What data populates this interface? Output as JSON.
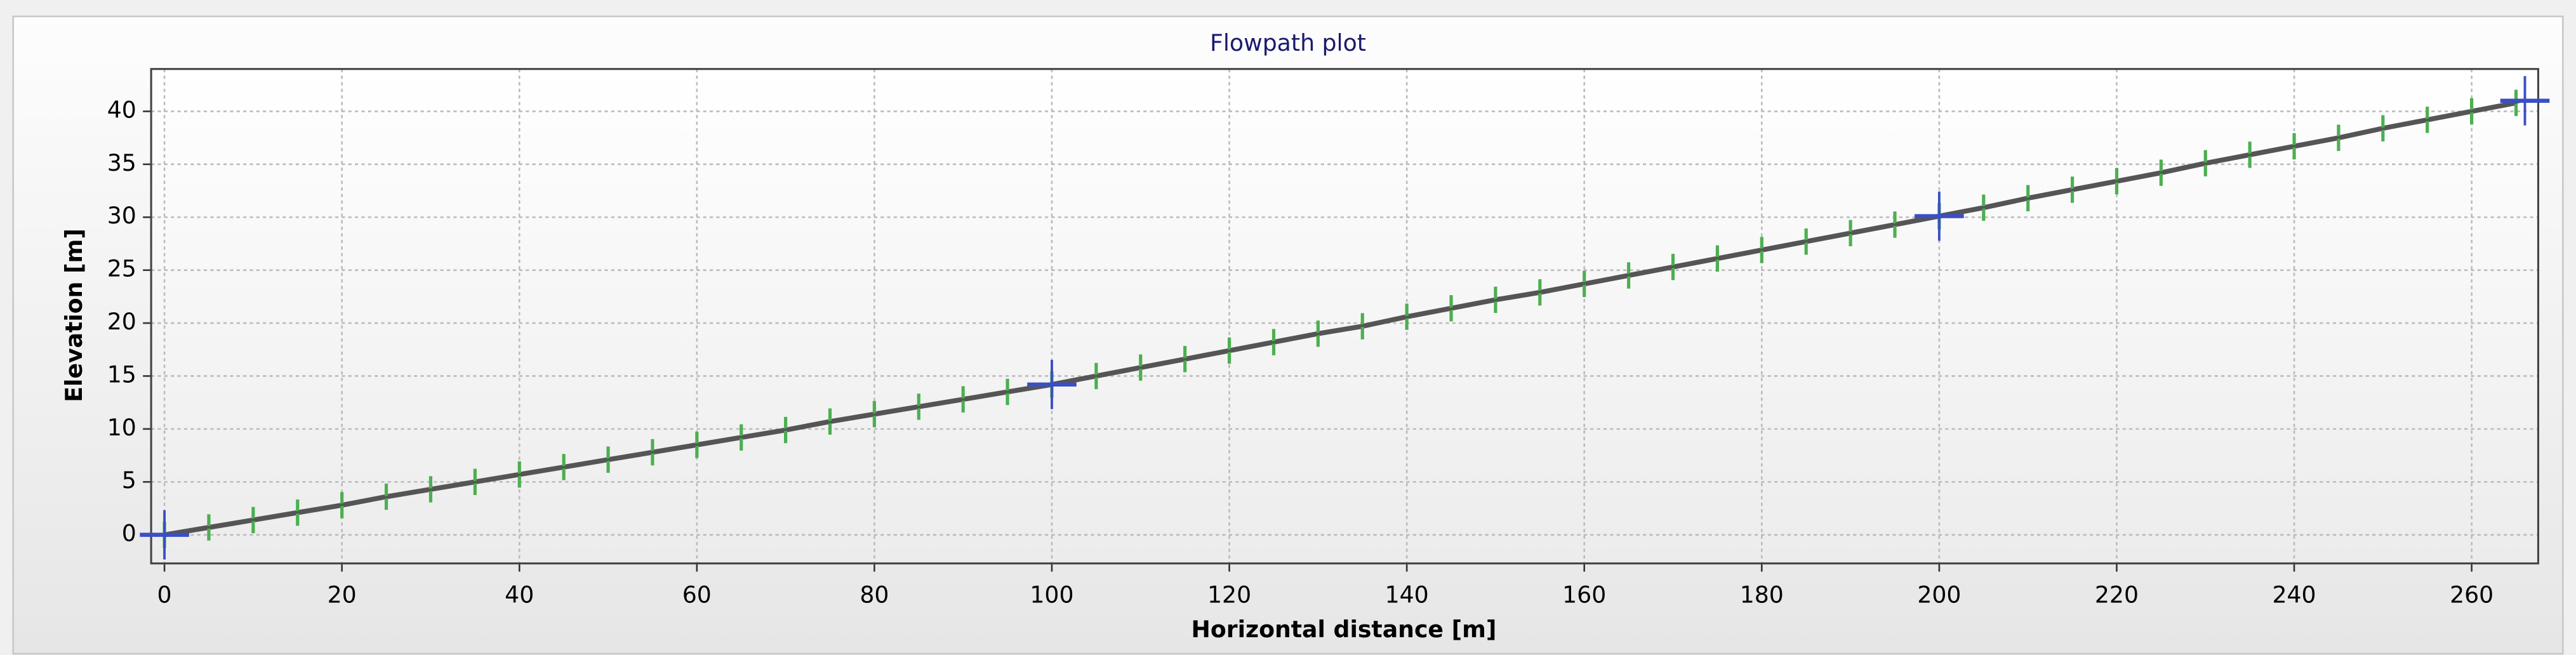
{
  "chart_data": {
    "type": "line",
    "title": "Flowpath plot",
    "xlabel": "Horizontal distance [m]",
    "ylabel": "Elevation [m]",
    "xlim": [
      -1.5,
      267.5
    ],
    "ylim": [
      -2.7,
      44
    ],
    "xticks": [
      0,
      20,
      40,
      60,
      80,
      100,
      120,
      140,
      160,
      180,
      200,
      220,
      240,
      260
    ],
    "yticks": [
      0,
      5,
      10,
      15,
      20,
      25,
      30,
      35,
      40
    ],
    "grid": true,
    "series": [
      {
        "color": "#4caf50",
        "line_color": "#555555",
        "marker": "tick",
        "x": [
          0,
          5,
          10,
          15,
          20,
          25,
          30,
          35,
          40,
          45,
          50,
          55,
          60,
          65,
          70,
          75,
          80,
          85,
          90,
          95,
          100,
          105,
          110,
          115,
          120,
          125,
          130,
          135,
          140,
          145,
          150,
          155,
          160,
          165,
          170,
          175,
          180,
          185,
          190,
          195,
          200,
          205,
          210,
          215,
          220,
          225,
          230,
          235,
          240,
          245,
          250,
          255,
          260,
          265
        ],
        "values": [
          0,
          0.7,
          1.4,
          2.1,
          2.8,
          3.6,
          4.3,
          5.0,
          5.7,
          6.4,
          7.1,
          7.8,
          8.5,
          9.2,
          9.9,
          10.7,
          11.4,
          12.1,
          12.8,
          13.5,
          14.2,
          15.0,
          15.8,
          16.6,
          17.4,
          18.2,
          19.0,
          19.7,
          20.6,
          21.4,
          22.2,
          22.9,
          23.7,
          24.5,
          25.3,
          26.1,
          26.9,
          27.7,
          28.5,
          29.3,
          30.1,
          30.9,
          31.8,
          32.6,
          33.4,
          34.2,
          35.1,
          35.9,
          36.7,
          37.5,
          38.4,
          39.2,
          40.0,
          40.8
        ]
      },
      {
        "color": "#3a4fc4",
        "line_color": "#555555",
        "marker": "cross",
        "x": [
          0,
          100,
          200,
          266
        ],
        "values": [
          0,
          14.2,
          30.1,
          41
        ]
      }
    ]
  }
}
